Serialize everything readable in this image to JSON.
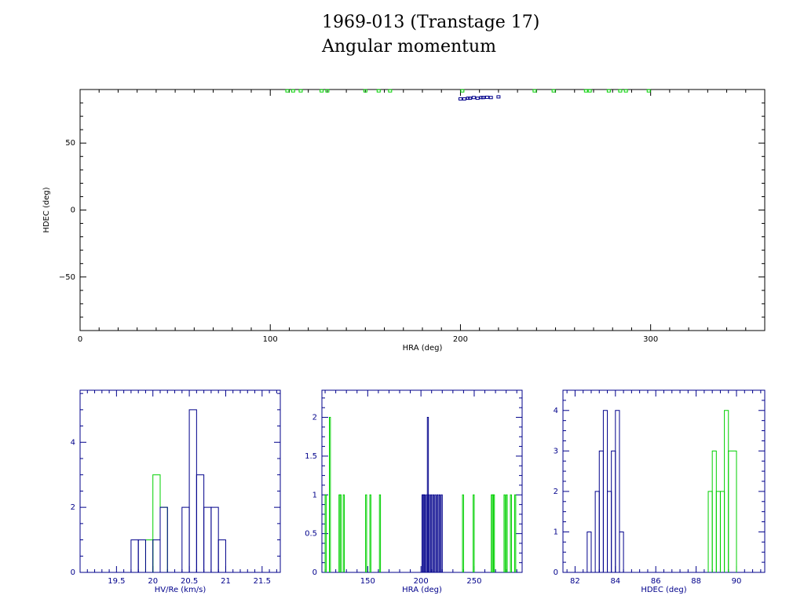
{
  "header": {
    "title": "1969-013 (Transtage 17)",
    "subtitle": "Angular momentum"
  },
  "colors": {
    "axes_main": "#000000",
    "axes_hist": "#00008b",
    "series_blue": "#00008b",
    "series_green": "#00d000"
  },
  "chart_data": [
    {
      "id": "scatter",
      "type": "scatter",
      "xlabel": "HRA (deg)",
      "ylabel": "HDEC (deg)",
      "xlim": [
        0,
        360
      ],
      "ylim": [
        -90,
        90
      ],
      "xticks": [
        0,
        100,
        200,
        300
      ],
      "yticks": [
        50,
        0,
        -50
      ],
      "grid": false,
      "series": [
        {
          "color": "green",
          "x": [
            109,
            112,
            116,
            127,
            130,
            150,
            157,
            163,
            201,
            239,
            249,
            266,
            268,
            278,
            284,
            287,
            299
          ],
          "y": [
            89,
            89,
            89,
            89,
            89,
            89,
            89,
            89,
            89,
            89,
            89,
            89,
            89,
            89,
            89,
            89,
            89
          ]
        },
        {
          "color": "blue",
          "x": [
            200,
            202,
            204,
            205,
            207,
            209,
            211,
            212,
            214,
            216,
            220
          ],
          "y": [
            83,
            83,
            83.5,
            83.5,
            84,
            83.5,
            84,
            84,
            84.2,
            84,
            84.5
          ]
        }
      ]
    },
    {
      "id": "hist-hv",
      "type": "histogram",
      "xlabel": "HV/Re (km/s)",
      "xlim": [
        19.0,
        21.75
      ],
      "ylim": [
        0,
        5.6
      ],
      "xticks": [
        19.5,
        20,
        20.5,
        21,
        21.5
      ],
      "xtick_labels": [
        "19.5",
        "20",
        "20.5",
        "21",
        "21.5"
      ],
      "yticks": [
        0,
        2,
        4
      ],
      "series": [
        {
          "color": "green",
          "edges": [
            19.9,
            20.0,
            20.1,
            20.2
          ],
          "counts": [
            1,
            3,
            2
          ]
        },
        {
          "color": "blue",
          "edges": [
            19.7,
            19.8,
            19.9,
            20.0,
            20.1,
            20.2,
            20.3,
            20.4,
            20.5,
            20.6,
            20.7,
            20.8,
            20.9,
            21.0
          ],
          "counts": [
            1,
            1,
            0,
            1,
            2,
            0,
            0,
            2,
            5,
            3,
            2,
            2,
            1
          ]
        }
      ]
    },
    {
      "id": "hist-hra",
      "type": "histogram",
      "xlabel": "HRA (deg)",
      "xlim": [
        107,
        295
      ],
      "ylim": [
        0,
        2.35
      ],
      "xticks": [
        150,
        200,
        250
      ],
      "xtick_labels": [
        "150",
        "200",
        "250"
      ],
      "yticks": [
        0,
        0.5,
        1,
        1.5,
        2
      ],
      "ytick_labels": [
        "0",
        "0.5",
        "1",
        "1.5",
        "2"
      ],
      "series": [
        {
          "color": "green",
          "edges": [
            [
              110,
              111
            ],
            [
              114,
              115
            ],
            [
              123,
              124
            ],
            [
              124,
              125
            ],
            [
              127,
              128
            ],
            [
              148,
              149
            ],
            [
              152,
              153
            ],
            [
              161,
              162
            ],
            [
              239,
              240
            ],
            [
              249,
              250
            ],
            [
              266,
              267
            ],
            [
              267,
              268
            ],
            [
              268,
              269
            ],
            [
              278,
              279
            ],
            [
              280,
              281
            ],
            [
              284,
              285
            ],
            [
              288,
              289
            ]
          ],
          "counts": [
            1,
            2,
            1,
            1,
            1,
            1,
            1,
            1,
            1,
            1,
            1,
            1,
            1,
            1,
            1,
            1,
            1
          ]
        },
        {
          "color": "blue",
          "edges": [
            [
              201,
              202
            ],
            [
              202,
              203
            ],
            [
              203,
              204
            ],
            [
              205,
              206
            ],
            [
              206,
              207
            ],
            [
              207,
              208
            ],
            [
              209,
              210
            ],
            [
              211,
              212
            ],
            [
              213,
              214
            ],
            [
              215,
              216
            ],
            [
              217,
              218
            ],
            [
              219,
              220
            ]
          ],
          "counts": [
            1,
            1,
            1,
            1,
            2,
            1,
            1,
            1,
            1,
            1,
            1,
            1
          ]
        }
      ]
    },
    {
      "id": "hist-hdec",
      "type": "histogram",
      "xlabel": "HDEC (deg)",
      "xlim": [
        81.4,
        91.4
      ],
      "ylim": [
        0,
        4.5
      ],
      "xticks": [
        82,
        84,
        86,
        88,
        90
      ],
      "xtick_labels": [
        "82",
        "84",
        "86",
        "88",
        "90"
      ],
      "yticks": [
        0,
        1,
        2,
        3,
        4
      ],
      "series": [
        {
          "color": "blue",
          "edges": [
            82.6,
            82.8,
            83.0,
            83.2,
            83.4,
            83.6,
            83.8,
            84.0,
            84.2,
            84.4
          ],
          "counts": [
            1,
            0,
            2,
            3,
            4,
            2,
            3,
            4,
            1
          ]
        },
        {
          "color": "green",
          "edges": [
            88.6,
            88.8,
            89.0,
            89.2,
            89.4,
            89.6,
            90.0
          ],
          "counts": [
            2,
            3,
            2,
            2,
            4,
            3
          ]
        }
      ]
    }
  ]
}
